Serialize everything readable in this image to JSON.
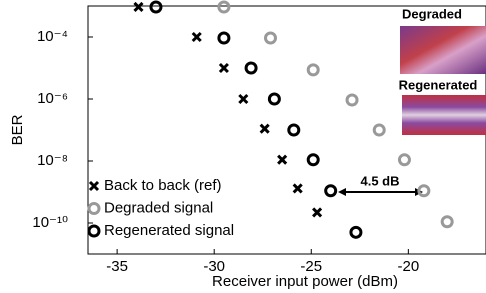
{
  "chart_data": {
    "type": "scatter",
    "scale_y": "log",
    "xlabel": "Receiver input power (dBm)",
    "ylabel": "BER",
    "xlim": [
      -36.5,
      -16
    ],
    "xticks": [
      -35,
      -30,
      -25,
      -20
    ],
    "ylim": [
      1e-11,
      0.001
    ],
    "yticks": [
      {
        "value": 0.0001,
        "label": "10⁻⁴"
      },
      {
        "value": 1e-06,
        "label": "10⁻⁶"
      },
      {
        "value": 1e-08,
        "label": "10⁻⁸"
      },
      {
        "value": 1e-10,
        "label": "10⁻¹⁰"
      }
    ],
    "legend": "lower left",
    "series": [
      {
        "name": "Back to back (ref)",
        "color": "#000000",
        "marker": "x",
        "x": [
          -33.9,
          -30.9,
          -29.5,
          -28.5,
          -27.4,
          -26.5,
          -25.7,
          -24.7
        ],
        "values": [
          0.00093,
          0.0001,
          1e-05,
          1e-06,
          1.1e-07,
          1.1e-08,
          1.3e-09,
          2.2e-10
        ]
      },
      {
        "name": "Degraded signal",
        "color": "#999999",
        "marker": "o",
        "x": [
          -29.5,
          -27.1,
          -24.9,
          -22.9,
          -21.5,
          -20.2,
          -19.2,
          -18.0
        ],
        "values": [
          0.00093,
          9.3e-05,
          8.7e-06,
          9.3e-07,
          1e-07,
          1.1e-08,
          1.1e-09,
          1.1e-10
        ]
      },
      {
        "name": "Regenerated signal",
        "color": "#000000",
        "marker": "o",
        "x": [
          -33.0,
          -29.5,
          -28.1,
          -26.9,
          -25.9,
          -24.9,
          -24.0,
          -22.7
        ],
        "values": [
          0.00093,
          9.3e-05,
          1e-05,
          1e-06,
          1e-07,
          1.1e-08,
          1.1e-09,
          5e-11
        ]
      }
    ],
    "annotations": {
      "gap": "4.5 dB",
      "inset_top": "Degraded",
      "inset_bottom": "Regenerated"
    }
  }
}
